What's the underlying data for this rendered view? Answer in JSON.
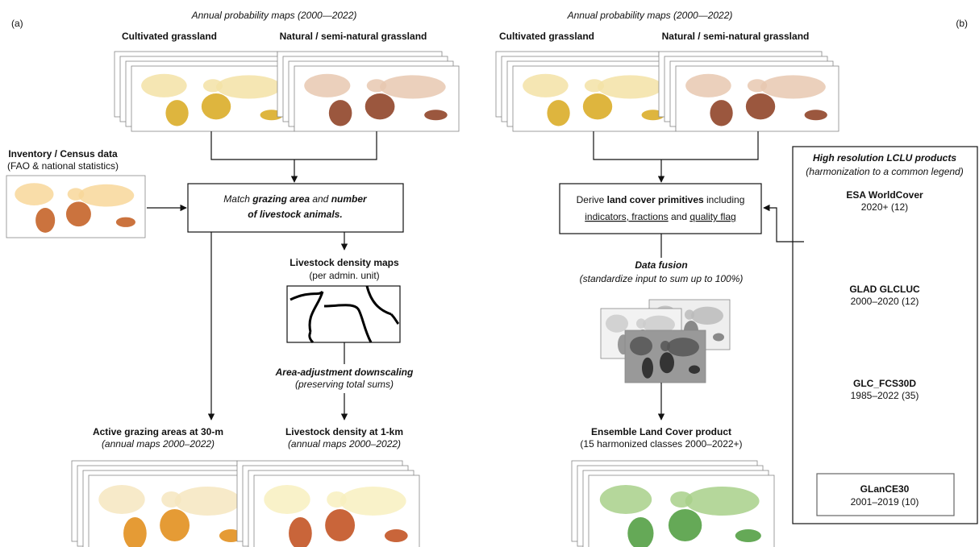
{
  "panel_a": {
    "label": "(a)",
    "maps_title": "Annual probability maps (2000—2022)",
    "map_left": "Cultivated grassland",
    "map_right": "Natural / semi-natural grassland",
    "inventory_title": "Inventory / Census data",
    "inventory_subtitle": "(FAO & national statistics)",
    "match_box": {
      "line1": [
        "Match ",
        "grazing area",
        " and ",
        "number"
      ],
      "line2": "of livestock animals."
    },
    "density_title": "Livestock density maps",
    "density_subtitle": "(per admin. unit)",
    "downscaling_title": "Area-adjustment downscaling",
    "downscaling_subtitle": "(preserving total sums)",
    "grazing_title": "Active grazing areas at 30-m",
    "grazing_subtitle": "(annual maps 2000–2022)",
    "density_1km_title": "Livestock density at 1-km",
    "density_1km_subtitle": "(annual maps 2000–2022)"
  },
  "panel_b": {
    "label": "(b)",
    "maps_title": "Annual probability maps (2000—2022)",
    "map_left": "Cultivated grassland",
    "map_right": "Natural / semi-natural grassland",
    "derive_box": {
      "line1": [
        "Derive ",
        "land cover primitives",
        " including"
      ],
      "line2": [
        "indicators, fractions",
        " and ",
        "quality flag"
      ]
    },
    "fusion_title": "Data fusion",
    "fusion_subtitle": "(standardize input to sum up to 100%)",
    "ensemble_title": "Ensemble Land Cover product",
    "ensemble_subtitle": "(15 harmonized classes 2000–2022+)",
    "products": {
      "title": "High resolution LCLU products",
      "subtitle": "(harmonization to a common legend)",
      "items": [
        {
          "name": "ESA WorldCover",
          "detail": "2020+ (12)"
        },
        {
          "name": "GLAD GLCLUC",
          "detail": "2000–2020 (12)"
        },
        {
          "name": "GLC_FCS30D",
          "detail": "1985–2022 (35)"
        },
        {
          "name": "GLanCE30",
          "detail": "2001–2019 (10)"
        }
      ]
    }
  }
}
